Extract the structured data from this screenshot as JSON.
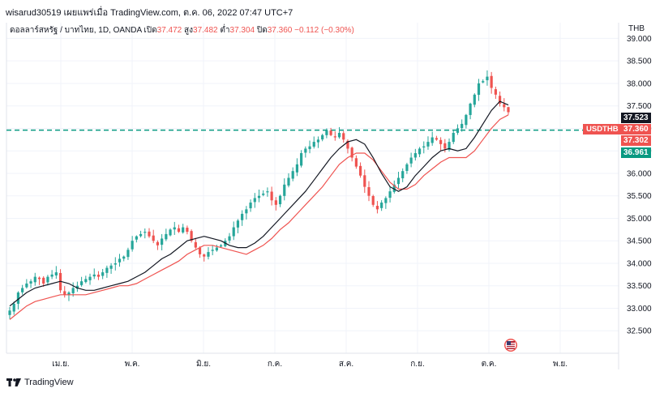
{
  "header": {
    "text": "wisarud30519 เผยแพร่เมื่อ TradingView.com, ต.ค. 06, 2022 07:47 UTC+7"
  },
  "legend": {
    "symbol": "ดอลลาร์สหรัฐ / บาทไทย, 1D, OANDA",
    "open_label": "เปิด",
    "open": "37.472",
    "high_label": "สูง",
    "high": "37.482",
    "low_label": "ต่ำ",
    "low": "37.304",
    "close_label": "ปิด",
    "close": "37.360",
    "change": "−0.112 (−0.30%)"
  },
  "logo": {
    "text": "TradingView"
  },
  "price_scale": {
    "currency": "THB",
    "ticks": [
      "39.000",
      "38.500",
      "38.000",
      "37.500",
      "37.000",
      "36.500",
      "36.000",
      "35.500",
      "35.000",
      "34.500",
      "34.000",
      "33.500",
      "33.000",
      "32.500"
    ]
  },
  "tags": {
    "symbol": "USDTHB",
    "ma_black": "37.523",
    "last": "37.360",
    "ma_red": "37.302",
    "hline": "36.961"
  },
  "time_axis": {
    "labels": [
      "เม.ย.",
      "พ.ค.",
      "มิ.ย.",
      "ก.ค.",
      "ส.ค.",
      "ก.ย.",
      "ต.ค.",
      "พ.ย."
    ]
  },
  "colors": {
    "up": "#26a69a",
    "down": "#ef5350",
    "ma_fast": "#131722",
    "ma_slow": "#ef5350",
    "hline": "#089981",
    "grid": "#f0f3fa"
  },
  "chart_data": {
    "type": "candlestick",
    "symbol": "USDTHB",
    "interval": "1D",
    "ylim": [
      32.0,
      39.35
    ],
    "hline": 36.961,
    "grid": true,
    "series": [
      {
        "name": "USDTHB",
        "values": [
          32.95,
          33.1,
          33.35,
          33.45,
          33.55,
          33.6,
          33.7,
          33.65,
          33.55,
          33.7,
          33.75,
          33.8,
          33.4,
          33.3,
          33.35,
          33.45,
          33.5,
          33.6,
          33.65,
          33.7,
          33.75,
          33.7,
          33.8,
          33.9,
          33.95,
          34.0,
          34.1,
          34.15,
          34.3,
          34.5,
          34.6,
          34.65,
          34.7,
          34.6,
          34.5,
          34.4,
          34.55,
          34.65,
          34.75,
          34.8,
          34.7,
          34.8,
          34.7,
          34.5,
          34.35,
          34.2,
          34.15,
          34.25,
          34.3,
          34.35,
          34.4,
          34.5,
          34.6,
          34.8,
          34.95,
          35.1,
          35.2,
          35.35,
          35.45,
          35.5,
          35.55,
          35.6,
          35.4,
          35.3,
          35.5,
          35.75,
          35.9,
          36.05,
          36.2,
          36.45,
          36.55,
          36.6,
          36.7,
          36.75,
          36.85,
          36.95,
          36.85,
          36.8,
          36.9,
          36.75,
          36.55,
          36.35,
          36.15,
          35.95,
          35.7,
          35.5,
          35.3,
          35.2,
          35.35,
          35.45,
          35.6,
          35.75,
          35.9,
          36.05,
          36.2,
          36.35,
          36.45,
          36.55,
          36.6,
          36.7,
          36.8,
          36.75,
          36.65,
          36.55,
          36.7,
          36.9,
          37.0,
          37.1,
          37.3,
          37.55,
          37.75,
          38.0,
          38.05,
          38.15,
          37.9,
          37.75,
          37.55,
          37.47,
          37.36
        ]
      },
      {
        "name": "",
        "values": [
          33.05,
          33.2,
          33.35,
          33.45,
          33.5,
          33.55,
          33.6,
          33.55,
          33.45,
          33.4,
          33.4,
          33.45,
          33.5,
          33.55,
          33.6,
          33.7,
          33.8,
          33.95,
          34.1,
          34.2,
          34.35,
          34.5,
          34.55,
          34.6,
          34.55,
          34.5,
          34.4,
          34.35,
          34.35,
          34.45,
          34.6,
          34.8,
          35.0,
          35.2,
          35.4,
          35.6,
          35.85,
          36.1,
          36.35,
          36.55,
          36.7,
          36.75,
          36.65,
          36.35,
          36.0,
          35.7,
          35.6,
          35.7,
          35.95,
          36.15,
          36.35,
          36.5,
          36.55,
          36.5,
          36.55,
          36.8,
          37.1,
          37.4,
          37.6,
          37.52
        ]
      },
      {
        "name": "",
        "values": [
          32.75,
          32.9,
          33.05,
          33.15,
          33.2,
          33.25,
          33.3,
          33.3,
          33.3,
          33.3,
          33.35,
          33.4,
          33.45,
          33.5,
          33.5,
          33.55,
          33.65,
          33.75,
          33.85,
          33.95,
          34.05,
          34.2,
          34.3,
          34.4,
          34.4,
          34.35,
          34.3,
          34.25,
          34.2,
          34.3,
          34.4,
          34.55,
          34.75,
          34.9,
          35.1,
          35.3,
          35.5,
          35.7,
          35.95,
          36.2,
          36.35,
          36.45,
          36.45,
          36.3,
          36.05,
          35.8,
          35.65,
          35.65,
          35.75,
          35.95,
          36.1,
          36.25,
          36.35,
          36.35,
          36.35,
          36.5,
          36.75,
          37.0,
          37.2,
          37.3
        ]
      }
    ],
    "last": {
      "open": 37.472,
      "high": 37.482,
      "low": 37.304,
      "close": 37.36
    }
  }
}
